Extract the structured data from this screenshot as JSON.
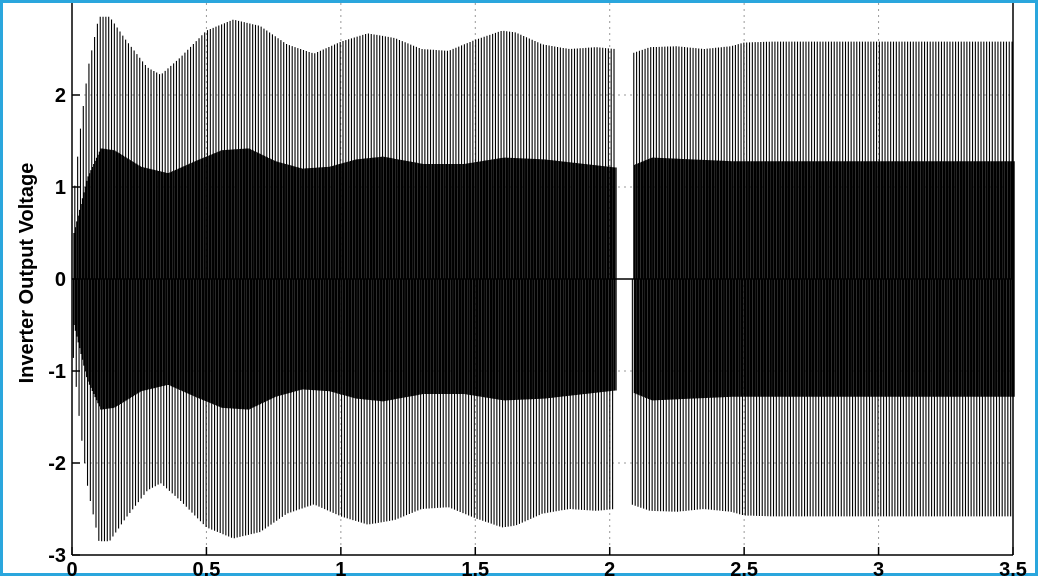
{
  "chart_data": {
    "type": "line",
    "title": "",
    "xlabel": "",
    "ylabel": "Inverter Output Voltage",
    "xlim": [
      0,
      3.5
    ],
    "ylim": [
      -3,
      3
    ],
    "x_ticks": [
      "0",
      "0.5",
      "1",
      "1.5",
      "2",
      "2.5",
      "3",
      "3.5"
    ],
    "y_ticks": [
      "-3",
      "-2",
      "-1",
      "0",
      "1",
      "2"
    ],
    "grid": true,
    "series": [
      {
        "description": "",
        "outer_envelope": {
          "t": [
            0.0,
            0.03,
            0.06,
            0.1,
            0.14,
            0.2,
            0.28,
            0.33,
            0.4,
            0.5,
            0.6,
            0.7,
            0.8,
            0.9,
            1.0,
            1.1,
            1.2,
            1.3,
            1.4,
            1.5,
            1.6,
            1.65,
            1.75,
            1.85,
            1.95,
            2.02,
            2.08,
            2.15,
            2.25,
            2.35,
            2.45,
            2.5,
            2.6,
            3.0,
            3.5
          ],
          "v": [
            0.7,
            1.6,
            2.3,
            2.85,
            2.85,
            2.6,
            2.3,
            2.22,
            2.4,
            2.7,
            2.82,
            2.75,
            2.55,
            2.45,
            2.58,
            2.67,
            2.62,
            2.5,
            2.48,
            2.6,
            2.7,
            2.68,
            2.55,
            2.5,
            2.52,
            2.5,
            2.45,
            2.52,
            2.53,
            2.5,
            2.53,
            2.57,
            2.58,
            2.58,
            2.58
          ]
        },
        "inner_envelope": {
          "t": [
            0.0,
            0.05,
            0.1,
            0.15,
            0.25,
            0.35,
            0.45,
            0.55,
            0.65,
            0.75,
            0.85,
            0.95,
            1.05,
            1.15,
            1.3,
            1.45,
            1.6,
            1.75,
            1.9,
            2.05,
            2.15,
            2.3,
            2.45,
            2.5,
            3.5
          ],
          "v": [
            0.5,
            1.1,
            1.42,
            1.4,
            1.22,
            1.15,
            1.28,
            1.4,
            1.42,
            1.28,
            1.2,
            1.22,
            1.3,
            1.33,
            1.25,
            1.25,
            1.32,
            1.3,
            1.25,
            1.2,
            1.32,
            1.3,
            1.28,
            1.28,
            1.28
          ]
        },
        "switching_period": 0.0105,
        "gap_interval": [
          2.02,
          2.08
        ]
      }
    ]
  }
}
